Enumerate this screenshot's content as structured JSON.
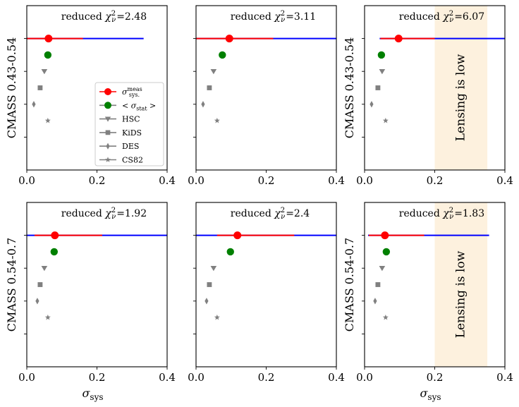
{
  "chart_data": {
    "type": "scatter",
    "title": "",
    "xlabel": "σ_sys",
    "xlim": [
      0,
      0.4
    ],
    "xticks": [
      "0.0",
      "0.2",
      "0.4"
    ],
    "legend": {
      "placement": "center-left of top-left panel",
      "entries": [
        {
          "key": "meas",
          "label": "σ_sys^meas",
          "marker": "circle",
          "color": "#ff0000",
          "line_color": "#ff0000"
        },
        {
          "key": "stat",
          "label": "< σ_stat >",
          "marker": "circle",
          "color": "#008000",
          "line_color": "#808080"
        },
        {
          "key": "HSC",
          "label": "HSC",
          "marker": "triangle-down",
          "color": "#808080",
          "line_color": "#808080"
        },
        {
          "key": "KiDS",
          "label": "KiDS",
          "marker": "square",
          "color": "#808080",
          "line_color": "#808080"
        },
        {
          "key": "DES",
          "label": "DES",
          "marker": "diamond",
          "color": "#808080",
          "line_color": "#808080"
        },
        {
          "key": "CS82",
          "label": "CS82",
          "marker": "star",
          "color": "#808080",
          "line_color": "#808080"
        }
      ]
    },
    "colors": {
      "meas": "#ff0000",
      "stat": "#008000",
      "survey": "#808080",
      "range_line": "#0000ff",
      "band": "#fdf1de"
    },
    "band_label": "Lensing is low",
    "panels": [
      {
        "ylabel": "CMASS 0.43-0.54",
        "chi2_prefix": "reduced",
        "chi2_symbol": "χ²_ν",
        "chi2_value": "=2.48",
        "meas": 0.062,
        "meas_err": [
          0.0,
          0.16
        ],
        "range": [
          -0.005,
          0.333
        ],
        "stat": 0.06,
        "HSC": 0.05,
        "KiDS": 0.038,
        "DES": 0.02,
        "CS82": 0.06,
        "band": null
      },
      {
        "ylabel": "",
        "chi2_prefix": "reduced",
        "chi2_symbol": "χ²_ν",
        "chi2_value": "=3.11",
        "meas": 0.095,
        "meas_err": [
          0.0,
          0.22
        ],
        "range": [
          -0.005,
          0.4
        ],
        "stat": 0.075,
        "HSC": 0.05,
        "KiDS": 0.038,
        "DES": 0.02,
        "CS82": 0.06,
        "band": null
      },
      {
        "ylabel": "CMASS 0.43-0.54",
        "chi2_prefix": "reduced",
        "chi2_symbol": "χ²_ν",
        "chi2_value": "=6.07",
        "meas": 0.097,
        "meas_err": [
          0.045,
          0.2
        ],
        "range": [
          0.043,
          0.4
        ],
        "stat": 0.048,
        "HSC": 0.05,
        "KiDS": 0.038,
        "DES": 0.02,
        "CS82": 0.06,
        "band": [
          0.2,
          0.35
        ]
      },
      {
        "ylabel": "CMASS 0.54-0.7",
        "chi2_prefix": "reduced",
        "chi2_symbol": "χ²_ν",
        "chi2_value": "=1.92",
        "meas": 0.08,
        "meas_err": [
          0.022,
          0.215
        ],
        "range": [
          0.0,
          0.4
        ],
        "stat": 0.078,
        "HSC": 0.05,
        "KiDS": 0.038,
        "DES": 0.03,
        "CS82": 0.06,
        "band": null
      },
      {
        "ylabel": "",
        "chi2_prefix": "reduced",
        "chi2_symbol": "χ²_ν",
        "chi2_value": "=2.4",
        "meas": 0.118,
        "meas_err": [
          0.06,
          0.28
        ],
        "range": [
          0.0,
          0.4
        ],
        "stat": 0.098,
        "HSC": 0.05,
        "KiDS": 0.038,
        "DES": 0.03,
        "CS82": 0.06,
        "band": null
      },
      {
        "ylabel": "CMASS 0.54-0.7",
        "chi2_prefix": "reduced",
        "chi2_symbol": "χ²_ν",
        "chi2_value": "=1.83",
        "meas": 0.058,
        "meas_err": [
          0.012,
          0.17
        ],
        "range": [
          0.01,
          0.355
        ],
        "stat": 0.062,
        "HSC": 0.05,
        "KiDS": 0.038,
        "DES": 0.03,
        "CS82": 0.06,
        "band": [
          0.2,
          0.35
        ]
      }
    ]
  }
}
